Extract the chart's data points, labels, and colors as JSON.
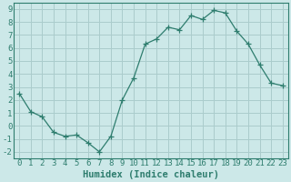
{
  "x": [
    0,
    1,
    2,
    3,
    4,
    5,
    6,
    7,
    8,
    9,
    10,
    11,
    12,
    13,
    14,
    15,
    16,
    17,
    18,
    19,
    20,
    21,
    22,
    23
  ],
  "y": [
    2.5,
    1.1,
    0.7,
    -0.5,
    -0.8,
    -0.7,
    -1.3,
    -2.0,
    -0.8,
    2.0,
    3.7,
    6.3,
    6.7,
    7.6,
    7.4,
    8.5,
    8.2,
    8.9,
    8.7,
    7.3,
    6.3,
    4.7,
    3.3,
    3.1
  ],
  "line_color": "#2e7d6e",
  "marker": "+",
  "marker_size": 4,
  "bg_color": "#cce8e8",
  "grid_color": "#aacccc",
  "xlabel": "Humidex (Indice chaleur)",
  "xlim": [
    -0.5,
    23.5
  ],
  "ylim": [
    -2.5,
    9.5
  ],
  "xticks": [
    0,
    1,
    2,
    3,
    4,
    5,
    6,
    7,
    8,
    9,
    10,
    11,
    12,
    13,
    14,
    15,
    16,
    17,
    18,
    19,
    20,
    21,
    22,
    23
  ],
  "yticks": [
    -2,
    -1,
    0,
    1,
    2,
    3,
    4,
    5,
    6,
    7,
    8,
    9
  ],
  "tick_fontsize": 6.5,
  "xlabel_fontsize": 7.5,
  "spine_color": "#2e7d6e",
  "label_color": "#2e7d6e"
}
